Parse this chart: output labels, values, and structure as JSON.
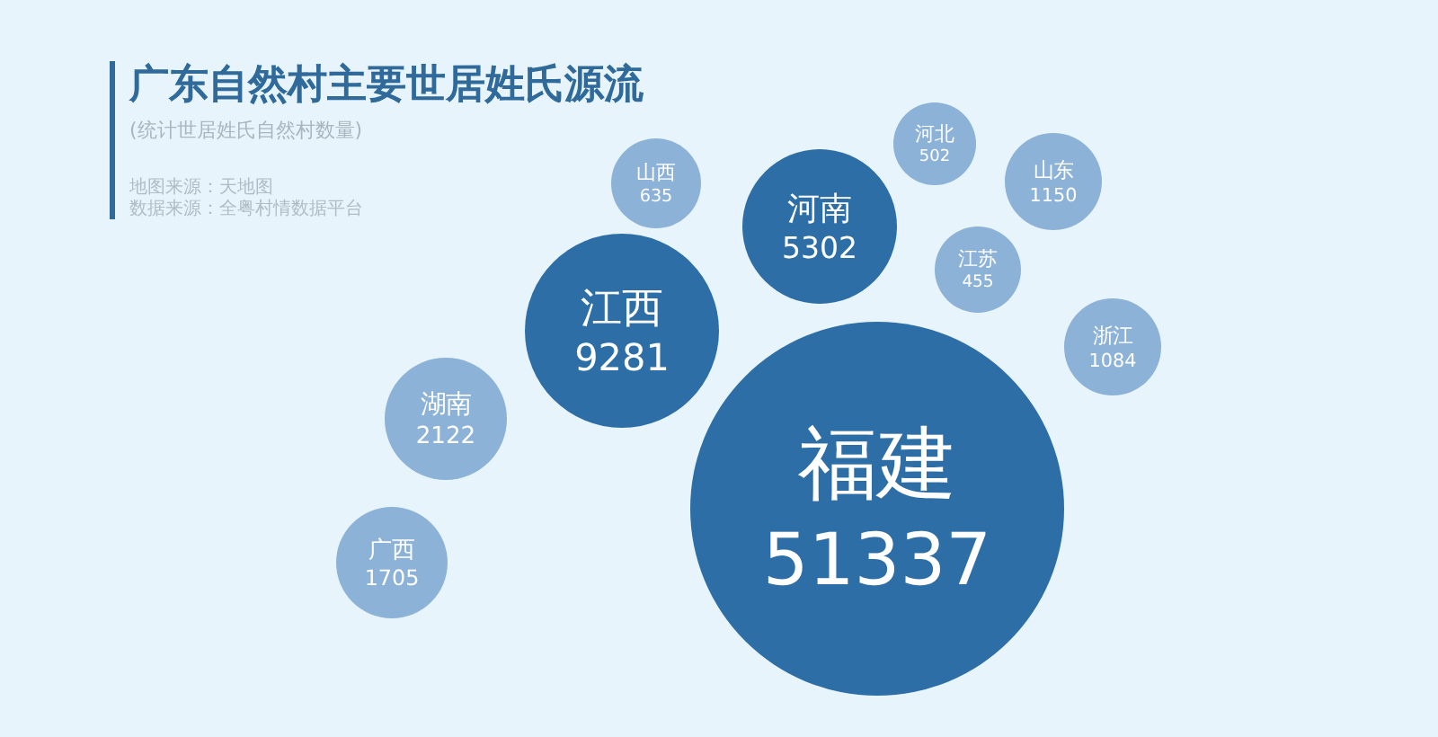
{
  "chart_data": {
    "type": "other",
    "title": "广东自然村主要世居姓氏源流",
    "subtitle": "(统计世居姓氏自然村数量)",
    "annotations": [
      "地图来源：天地图",
      "数据来源：全粤村情数据平台"
    ],
    "categories": [
      "福建",
      "江西",
      "河南",
      "湖南",
      "广西",
      "山东",
      "浙江",
      "山西",
      "河北",
      "江苏"
    ],
    "values": [
      51337,
      9281,
      5302,
      2122,
      1705,
      1150,
      1084,
      635,
      502,
      455
    ],
    "colors": [
      "#2d6ea6",
      "#2d6ea6",
      "#2d6ea6",
      "#8cb2d7",
      "#8cb2d7",
      "#8cb2d7",
      "#8cb2d7",
      "#8cb2d7",
      "#8cb2d7",
      "#8cb2d7"
    ],
    "data_labels": true
  }
}
